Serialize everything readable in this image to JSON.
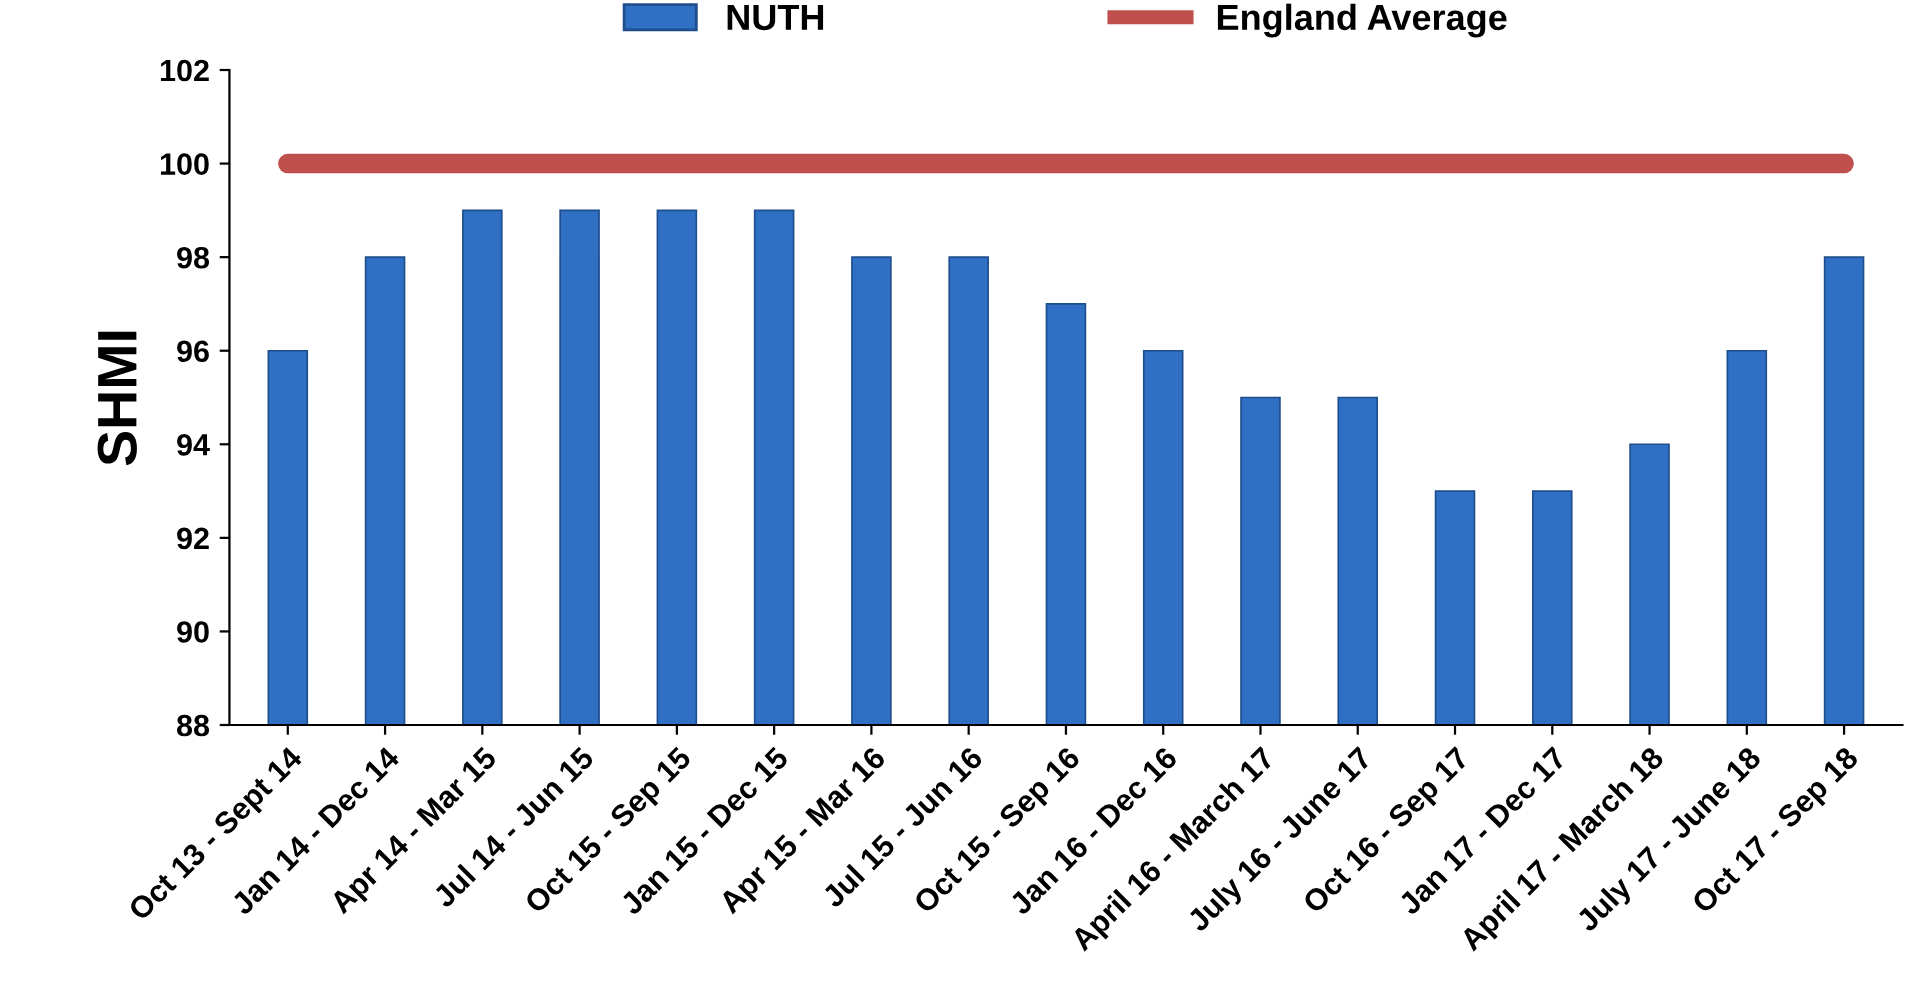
{
  "chart_data": {
    "type": "bar",
    "ylabel": "SHMI",
    "categories": [
      "Oct 13 - Sept 14",
      "Jan 14 - Dec 14",
      "Apr 14 - Mar 15",
      "Jul 14 - Jun 15",
      "Oct 15 - Sep 15",
      "Jan 15 - Dec 15",
      "Apr 15 - Mar 16",
      "Jul 15 - Jun 16",
      "Oct 15 - Sep 16",
      "Jan 16 - Dec 16",
      "April 16 - March 17",
      "July 16 - June 17",
      "Oct 16 - Sep 17",
      "Jan 17 - Dec 17",
      "April 17 - March 18",
      "July 17 - June 18",
      "Oct 17 - Sep 18"
    ],
    "series": [
      {
        "name": "NUTH",
        "color": "#2f6fc4",
        "values": [
          96,
          98,
          99,
          99,
          99,
          99,
          98,
          98,
          97,
          96,
          95,
          95,
          93,
          93,
          94,
          96,
          98
        ]
      },
      {
        "name": "England Average",
        "type": "line",
        "color": "#c0504d",
        "values": [
          100,
          100,
          100,
          100,
          100,
          100,
          100,
          100,
          100,
          100,
          100,
          100,
          100,
          100,
          100,
          100,
          100
        ]
      }
    ],
    "ylim": [
      88,
      102
    ],
    "yticks": [
      88,
      90,
      92,
      94,
      96,
      98,
      100,
      102
    ],
    "grid": false,
    "legend": "top"
  }
}
